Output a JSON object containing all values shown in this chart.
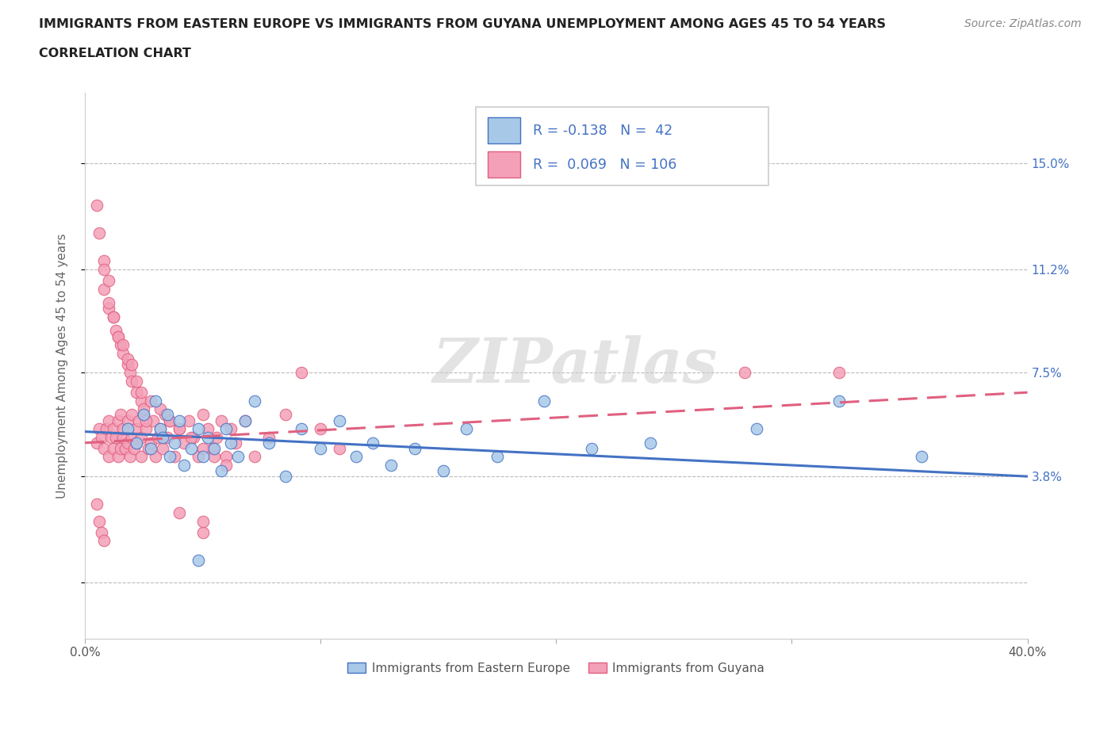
{
  "title_line1": "IMMIGRANTS FROM EASTERN EUROPE VS IMMIGRANTS FROM GUYANA UNEMPLOYMENT AMONG AGES 45 TO 54 YEARS",
  "title_line2": "CORRELATION CHART",
  "source_text": "Source: ZipAtlas.com",
  "ylabel": "Unemployment Among Ages 45 to 54 years",
  "xlim": [
    0.0,
    0.4
  ],
  "ylim": [
    -0.02,
    0.175
  ],
  "yticks": [
    0.0,
    0.038,
    0.075,
    0.112,
    0.15
  ],
  "ytick_labels": [
    "",
    "3.8%",
    "7.5%",
    "11.2%",
    "15.0%"
  ],
  "xticks": [
    0.0,
    0.1,
    0.2,
    0.3,
    0.4
  ],
  "xtick_labels": [
    "0.0%",
    "",
    "",
    "",
    "40.0%"
  ],
  "legend_label1": "Immigrants from Eastern Europe",
  "legend_label2": "Immigrants from Guyana",
  "R1": -0.138,
  "N1": 42,
  "R2": 0.069,
  "N2": 106,
  "color_blue": "#a8c8e8",
  "color_pink": "#f4a0b8",
  "color_blue_line": "#4472c4",
  "color_pink_line": "#e06080",
  "watermark": "ZIPatlas",
  "blue_x": [
    0.018,
    0.022,
    0.025,
    0.028,
    0.03,
    0.032,
    0.033,
    0.035,
    0.036,
    0.038,
    0.04,
    0.042,
    0.045,
    0.048,
    0.05,
    0.052,
    0.055,
    0.058,
    0.06,
    0.062,
    0.065,
    0.068,
    0.072,
    0.078,
    0.085,
    0.092,
    0.1,
    0.108,
    0.115,
    0.122,
    0.13,
    0.14,
    0.152,
    0.162,
    0.175,
    0.195,
    0.215,
    0.24,
    0.285,
    0.32,
    0.355,
    0.048
  ],
  "blue_y": [
    0.055,
    0.05,
    0.06,
    0.048,
    0.065,
    0.055,
    0.052,
    0.06,
    0.045,
    0.05,
    0.058,
    0.042,
    0.048,
    0.055,
    0.045,
    0.052,
    0.048,
    0.04,
    0.055,
    0.05,
    0.045,
    0.058,
    0.065,
    0.05,
    0.038,
    0.055,
    0.048,
    0.058,
    0.045,
    0.05,
    0.042,
    0.048,
    0.04,
    0.055,
    0.045,
    0.065,
    0.048,
    0.05,
    0.055,
    0.065,
    0.045,
    0.008
  ],
  "pink_x": [
    0.005,
    0.006,
    0.007,
    0.008,
    0.009,
    0.01,
    0.01,
    0.011,
    0.012,
    0.012,
    0.013,
    0.014,
    0.014,
    0.015,
    0.015,
    0.016,
    0.016,
    0.017,
    0.018,
    0.018,
    0.019,
    0.02,
    0.02,
    0.021,
    0.022,
    0.022,
    0.023,
    0.024,
    0.024,
    0.025,
    0.026,
    0.027,
    0.028,
    0.029,
    0.03,
    0.031,
    0.032,
    0.033,
    0.034,
    0.035,
    0.036,
    0.038,
    0.04,
    0.042,
    0.044,
    0.046,
    0.048,
    0.05,
    0.052,
    0.054,
    0.056,
    0.058,
    0.06,
    0.062,
    0.064,
    0.068,
    0.072,
    0.078,
    0.085,
    0.092,
    0.1,
    0.108,
    0.005,
    0.006,
    0.008,
    0.008,
    0.01,
    0.01,
    0.012,
    0.013,
    0.014,
    0.015,
    0.016,
    0.018,
    0.019,
    0.02,
    0.022,
    0.024,
    0.025,
    0.026,
    0.008,
    0.01,
    0.012,
    0.014,
    0.016,
    0.018,
    0.02,
    0.022,
    0.024,
    0.028,
    0.032,
    0.036,
    0.04,
    0.045,
    0.05,
    0.055,
    0.06,
    0.28,
    0.32,
    0.05,
    0.005,
    0.006,
    0.007,
    0.008,
    0.04,
    0.05
  ],
  "pink_y": [
    0.05,
    0.055,
    0.052,
    0.048,
    0.055,
    0.045,
    0.058,
    0.052,
    0.048,
    0.055,
    0.052,
    0.045,
    0.058,
    0.048,
    0.06,
    0.052,
    0.055,
    0.048,
    0.05,
    0.058,
    0.045,
    0.052,
    0.06,
    0.048,
    0.055,
    0.05,
    0.058,
    0.045,
    0.052,
    0.06,
    0.055,
    0.048,
    0.05,
    0.058,
    0.045,
    0.052,
    0.055,
    0.048,
    0.06,
    0.052,
    0.058,
    0.045,
    0.055,
    0.05,
    0.058,
    0.052,
    0.045,
    0.06,
    0.055,
    0.048,
    0.052,
    0.058,
    0.045,
    0.055,
    0.05,
    0.058,
    0.045,
    0.052,
    0.06,
    0.075,
    0.055,
    0.048,
    0.135,
    0.125,
    0.115,
    0.105,
    0.108,
    0.098,
    0.095,
    0.09,
    0.088,
    0.085,
    0.082,
    0.078,
    0.075,
    0.072,
    0.068,
    0.065,
    0.062,
    0.058,
    0.112,
    0.1,
    0.095,
    0.088,
    0.085,
    0.08,
    0.078,
    0.072,
    0.068,
    0.065,
    0.062,
    0.058,
    0.055,
    0.052,
    0.048,
    0.045,
    0.042,
    0.075,
    0.075,
    0.018,
    0.028,
    0.022,
    0.018,
    0.015,
    0.025,
    0.022
  ],
  "blue_trend_x": [
    0.0,
    0.4
  ],
  "blue_trend_y": [
    0.054,
    0.038
  ],
  "pink_trend_x": [
    0.0,
    0.4
  ],
  "pink_trend_y": [
    0.05,
    0.068
  ]
}
